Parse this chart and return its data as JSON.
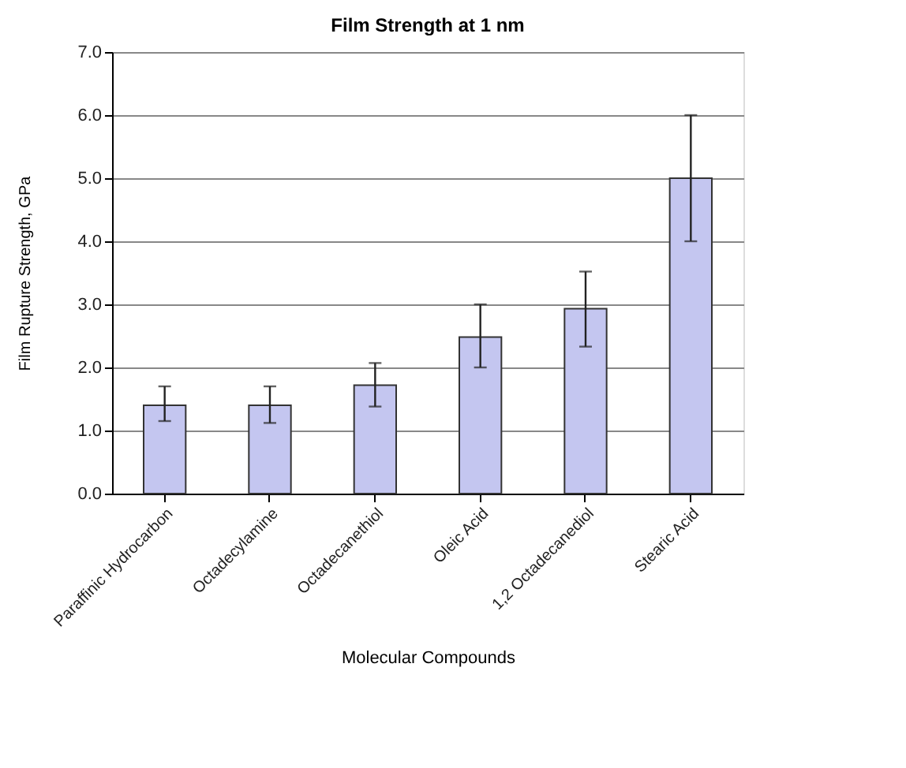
{
  "chart_data": {
    "type": "bar",
    "title": "Film Strength at 1 nm",
    "xlabel": "Molecular Compounds",
    "ylabel": "Film Rupture Strength, GPa",
    "categories": [
      "Paraffinic Hydrocarbon",
      "Octadecylamine",
      "Octadecanethiol",
      "Oleic Acid",
      "1,2 Octadecanediol",
      "Stearic Acid"
    ],
    "values": [
      1.4,
      1.4,
      1.72,
      2.48,
      2.93,
      5.0
    ],
    "errors": [
      [
        1.15,
        1.7
      ],
      [
        1.12,
        1.7
      ],
      [
        1.38,
        2.07
      ],
      [
        2.0,
        3.0
      ],
      [
        2.33,
        3.52
      ],
      [
        4.0,
        6.0
      ]
    ],
    "color": "#c4c6f0",
    "ylim": [
      0,
      7
    ],
    "yticks": [
      {
        "value": 0,
        "label": "0.0"
      },
      {
        "value": 1,
        "label": "1.0"
      },
      {
        "value": 2,
        "label": "2.0"
      },
      {
        "value": 3,
        "label": "3.0"
      },
      {
        "value": 4,
        "label": "4.0"
      },
      {
        "value": 5,
        "label": "5.0"
      },
      {
        "value": 6,
        "label": "6.0"
      },
      {
        "value": 7,
        "label": "7.0"
      }
    ],
    "grid": "y"
  }
}
